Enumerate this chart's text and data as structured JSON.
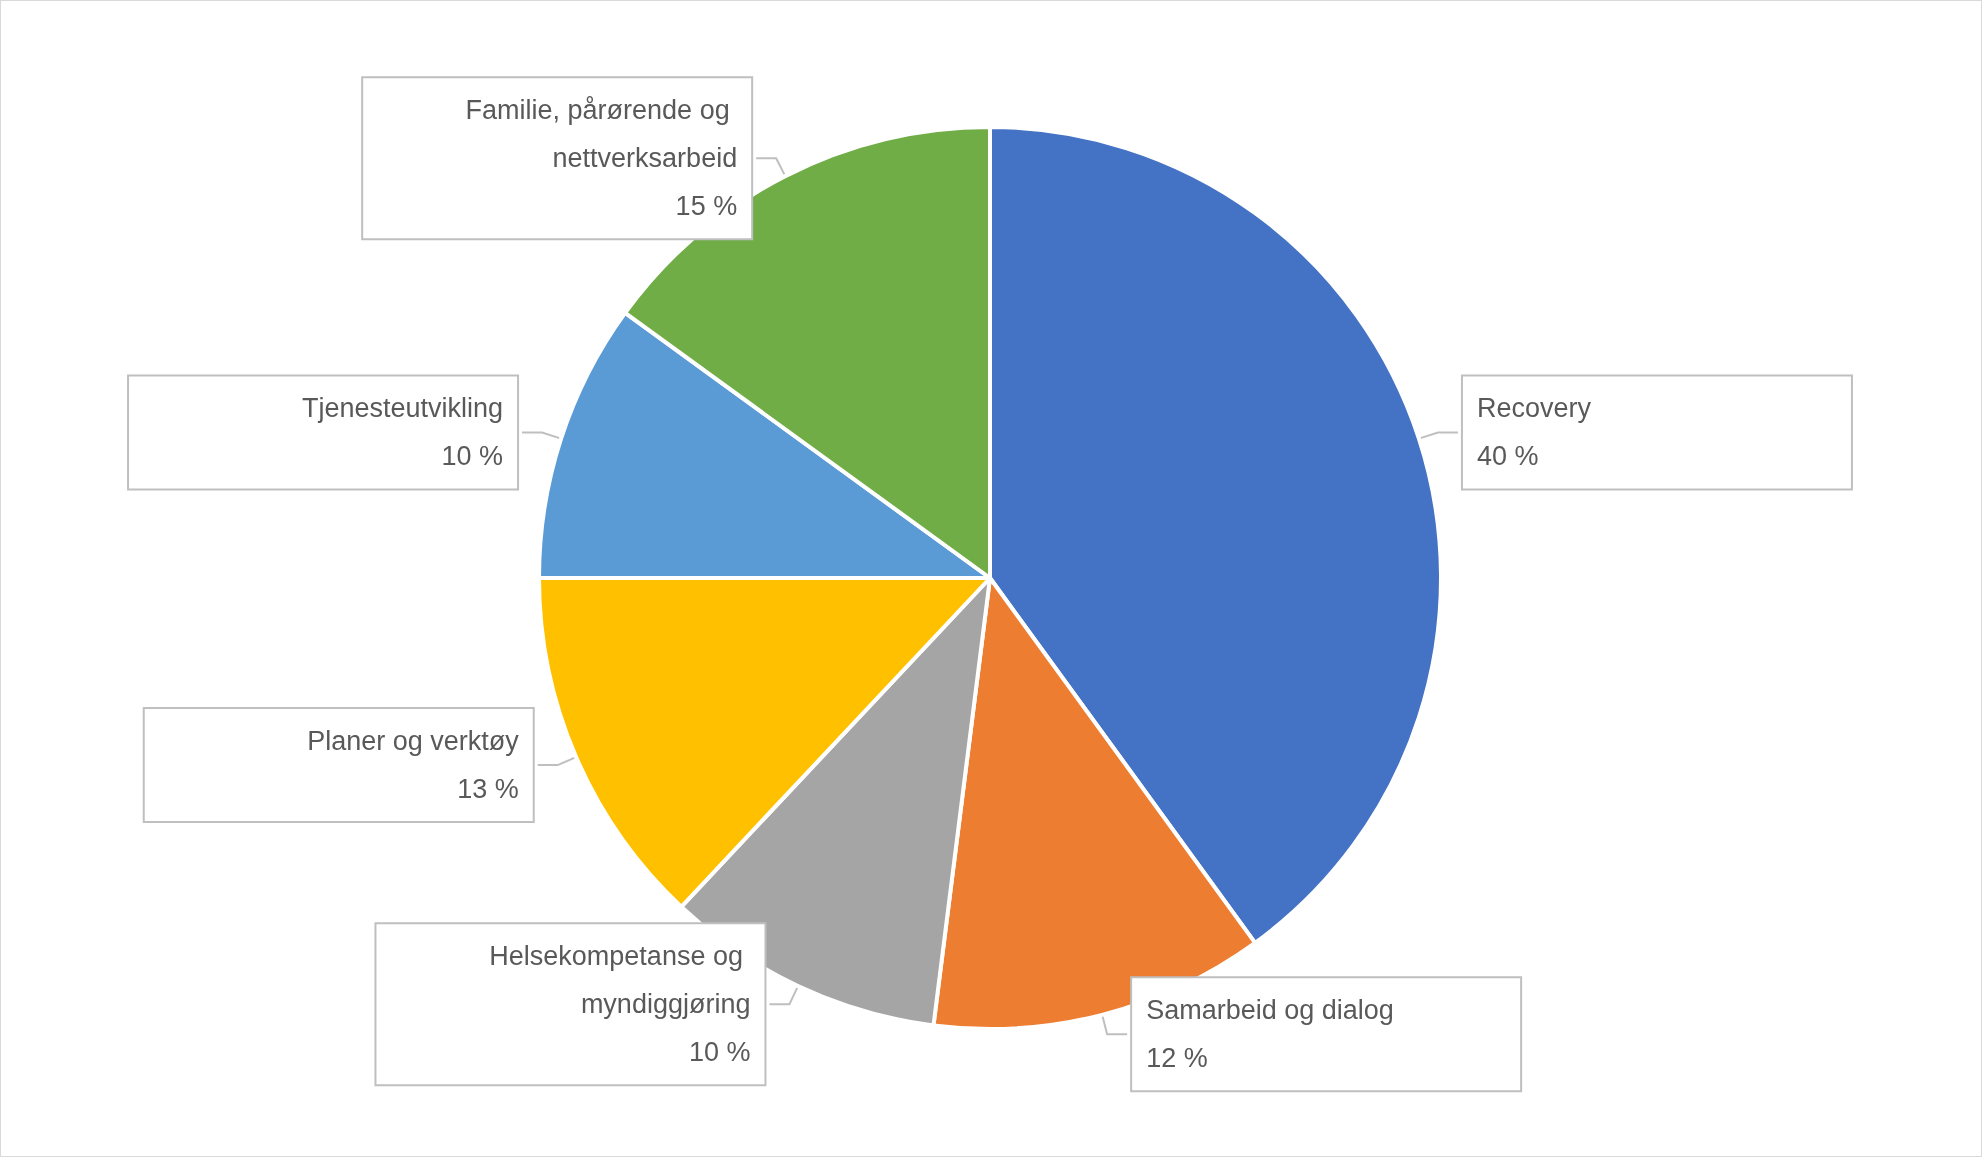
{
  "chart_data": {
    "type": "pie",
    "categories": [
      "Recovery",
      "Samarbeid og dialog",
      "Helsekompetanse og myndiggjøring",
      "Planer og verktøy",
      "Tjenesteutvikling",
      "Familie, pårørende og nettverksarbeid"
    ],
    "values": [
      40,
      12,
      10,
      13,
      10,
      15
    ],
    "value_labels": [
      "40 %",
      "12 %",
      "10 %",
      "13 %",
      "10 %",
      "15 %"
    ],
    "colors": [
      "#4472c4",
      "#ed7d31",
      "#a5a5a5",
      "#ffc000",
      "#5b9bd5",
      "#70ad47"
    ],
    "legend": false
  }
}
